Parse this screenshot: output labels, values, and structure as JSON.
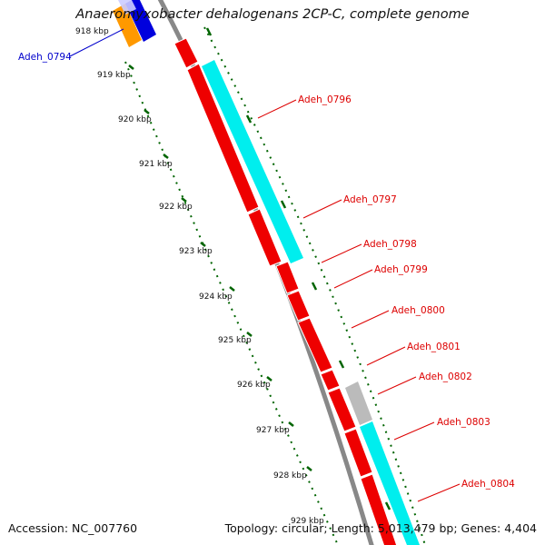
{
  "title": "Anaeromyxobacter dehalogenans 2CP-C, complete genome",
  "footer": {
    "accession": "Accession: NC_007760",
    "stats": "Topology: circular; Length: 5,013,479 bp; Genes: 4,404"
  },
  "scale_labels": [
    "918 kbp",
    "919 kbp",
    "920 kbp",
    "921 kbp",
    "922 kbp",
    "923 kbp",
    "924 kbp",
    "925 kbp",
    "926 kbp",
    "927 kbp",
    "928 kbp",
    "929 kbp"
  ],
  "genes": [
    {
      "name": "Adeh_0794",
      "color": "#0000cc"
    },
    {
      "name": "Adeh_0796",
      "color": "#dd0000"
    },
    {
      "name": "Adeh_0797",
      "color": "#dd0000"
    },
    {
      "name": "Adeh_0798",
      "color": "#dd0000"
    },
    {
      "name": "Adeh_0799",
      "color": "#dd0000"
    },
    {
      "name": "Adeh_0800",
      "color": "#dd0000"
    },
    {
      "name": "Adeh_0801",
      "color": "#dd0000"
    },
    {
      "name": "Adeh_0802",
      "color": "#dd0000"
    },
    {
      "name": "Adeh_0803",
      "color": "#dd0000"
    },
    {
      "name": "Adeh_0804",
      "color": "#dd0000"
    }
  ],
  "colors": {
    "cds_forward": "#ee0000",
    "rna_track": "#00eeee",
    "reverse_strand": "#0000ee",
    "other_feature": "#ffa500",
    "pseudogene": "#bbbbbb",
    "backbone": "#888888",
    "scale": "#006400"
  }
}
